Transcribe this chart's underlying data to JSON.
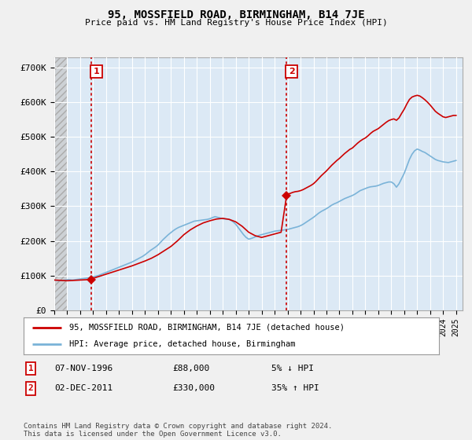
{
  "title": "95, MOSSFIELD ROAD, BIRMINGHAM, B14 7JE",
  "subtitle": "Price paid vs. HM Land Registry's House Price Index (HPI)",
  "ylabel_ticks": [
    "£0",
    "£100K",
    "£200K",
    "£300K",
    "£400K",
    "£500K",
    "£600K",
    "£700K"
  ],
  "ytick_values": [
    0,
    100000,
    200000,
    300000,
    400000,
    500000,
    600000,
    700000
  ],
  "ylim": [
    0,
    730000
  ],
  "xlim_start": 1994.0,
  "xlim_end": 2025.5,
  "background_color": "#f0f0f0",
  "plot_bg_color": "#dce9f5",
  "hatch_color": "#c8c8c8",
  "hpi_color": "#7ab3d8",
  "price_color": "#cc0000",
  "vline_color": "#cc0000",
  "sale1_year": 1996.85,
  "sale1_price": 88000,
  "sale2_year": 2011.92,
  "sale2_price": 330000,
  "legend_label1": "95, MOSSFIELD ROAD, BIRMINGHAM, B14 7JE (detached house)",
  "legend_label2": "HPI: Average price, detached house, Birmingham",
  "table_row1": [
    "1",
    "07-NOV-1996",
    "£88,000",
    "5% ↓ HPI"
  ],
  "table_row2": [
    "2",
    "02-DEC-2011",
    "£330,000",
    "35% ↑ HPI"
  ],
  "footnote": "Contains HM Land Registry data © Crown copyright and database right 2024.\nThis data is licensed under the Open Government Licence v3.0.",
  "hpi_x": [
    1994.0,
    1994.1,
    1994.2,
    1994.3,
    1994.4,
    1994.5,
    1994.6,
    1994.7,
    1994.8,
    1994.9,
    1995.0,
    1995.1,
    1995.2,
    1995.3,
    1995.4,
    1995.5,
    1995.6,
    1995.7,
    1995.8,
    1995.9,
    1996.0,
    1996.1,
    1996.2,
    1996.3,
    1996.4,
    1996.5,
    1996.6,
    1996.7,
    1996.8,
    1996.9,
    1997.0,
    1997.2,
    1997.4,
    1997.6,
    1997.8,
    1998.0,
    1998.2,
    1998.4,
    1998.6,
    1998.8,
    1999.0,
    1999.2,
    1999.4,
    1999.6,
    1999.8,
    2000.0,
    2000.2,
    2000.4,
    2000.6,
    2000.8,
    2001.0,
    2001.2,
    2001.4,
    2001.6,
    2001.8,
    2002.0,
    2002.2,
    2002.4,
    2002.6,
    2002.8,
    2003.0,
    2003.2,
    2003.4,
    2003.6,
    2003.8,
    2004.0,
    2004.2,
    2004.4,
    2004.6,
    2004.8,
    2005.0,
    2005.2,
    2005.4,
    2005.6,
    2005.8,
    2006.0,
    2006.2,
    2006.4,
    2006.6,
    2006.8,
    2007.0,
    2007.2,
    2007.4,
    2007.6,
    2007.8,
    2008.0,
    2008.2,
    2008.4,
    2008.6,
    2008.8,
    2009.0,
    2009.2,
    2009.4,
    2009.6,
    2009.8,
    2010.0,
    2010.2,
    2010.4,
    2010.6,
    2010.8,
    2011.0,
    2011.2,
    2011.4,
    2011.6,
    2011.8,
    2012.0,
    2012.2,
    2012.4,
    2012.6,
    2012.8,
    2013.0,
    2013.2,
    2013.4,
    2013.6,
    2013.8,
    2014.0,
    2014.2,
    2014.4,
    2014.6,
    2014.8,
    2015.0,
    2015.2,
    2015.4,
    2015.6,
    2015.8,
    2016.0,
    2016.2,
    2016.4,
    2016.6,
    2016.8,
    2017.0,
    2017.2,
    2017.4,
    2017.6,
    2017.8,
    2018.0,
    2018.2,
    2018.4,
    2018.6,
    2018.8,
    2019.0,
    2019.2,
    2019.4,
    2019.6,
    2019.8,
    2020.0,
    2020.2,
    2020.4,
    2020.6,
    2020.8,
    2021.0,
    2021.2,
    2021.4,
    2021.6,
    2021.8,
    2022.0,
    2022.2,
    2022.4,
    2022.6,
    2022.8,
    2023.0,
    2023.2,
    2023.4,
    2023.6,
    2023.8,
    2024.0,
    2024.2,
    2024.4,
    2024.6,
    2024.8,
    2025.0
  ],
  "hpi_y": [
    87000,
    86500,
    86000,
    85500,
    85000,
    85500,
    86000,
    86500,
    87000,
    87500,
    88000,
    88500,
    88000,
    87500,
    87000,
    87500,
    88000,
    88500,
    89000,
    89500,
    90000,
    90500,
    91000,
    91500,
    92000,
    92500,
    93000,
    93500,
    94000,
    94500,
    96000,
    98000,
    100000,
    103000,
    106000,
    109000,
    112000,
    115000,
    118000,
    121000,
    124000,
    127000,
    130000,
    133000,
    136000,
    139000,
    143000,
    147000,
    151000,
    155000,
    160000,
    166000,
    172000,
    177000,
    182000,
    188000,
    196000,
    204000,
    211000,
    218000,
    224000,
    230000,
    235000,
    239000,
    242000,
    245000,
    248000,
    251000,
    254000,
    257000,
    258000,
    259000,
    260000,
    261000,
    262000,
    264000,
    267000,
    270000,
    268000,
    266000,
    264000,
    263000,
    263000,
    260000,
    255000,
    248000,
    238000,
    228000,
    218000,
    210000,
    205000,
    207000,
    210000,
    213000,
    216000,
    218000,
    220000,
    222000,
    224000,
    226000,
    228000,
    229000,
    230000,
    231000,
    232000,
    233000,
    235000,
    237000,
    239000,
    241000,
    244000,
    248000,
    253000,
    258000,
    263000,
    268000,
    274000,
    280000,
    285000,
    289000,
    293000,
    298000,
    303000,
    307000,
    310000,
    314000,
    318000,
    322000,
    325000,
    328000,
    331000,
    335000,
    340000,
    345000,
    348000,
    351000,
    354000,
    356000,
    357000,
    358000,
    360000,
    363000,
    366000,
    368000,
    370000,
    370000,
    365000,
    355000,
    365000,
    380000,
    395000,
    415000,
    435000,
    450000,
    460000,
    465000,
    462000,
    458000,
    455000,
    450000,
    445000,
    440000,
    435000,
    432000,
    430000,
    428000,
    427000,
    426000,
    428000,
    430000,
    432000
  ],
  "price_x": [
    1994.0,
    1994.5,
    1995.0,
    1995.5,
    1996.0,
    1996.5,
    1996.85,
    1997.0,
    1997.5,
    1998.0,
    1998.5,
    1999.0,
    1999.5,
    2000.0,
    2000.5,
    2001.0,
    2001.5,
    2002.0,
    2002.5,
    2003.0,
    2003.5,
    2004.0,
    2004.5,
    2005.0,
    2005.5,
    2006.0,
    2006.5,
    2007.0,
    2007.5,
    2008.0,
    2008.5,
    2009.0,
    2009.5,
    2010.0,
    2010.5,
    2011.0,
    2011.5,
    2011.92,
    2012.0,
    2012.2,
    2012.4,
    2012.6,
    2012.8,
    2013.0,
    2013.2,
    2013.4,
    2013.6,
    2013.8,
    2014.0,
    2014.2,
    2014.4,
    2014.6,
    2014.8,
    2015.0,
    2015.2,
    2015.4,
    2015.6,
    2015.8,
    2016.0,
    2016.2,
    2016.4,
    2016.6,
    2016.8,
    2017.0,
    2017.2,
    2017.4,
    2017.6,
    2017.8,
    2018.0,
    2018.2,
    2018.4,
    2018.6,
    2018.8,
    2019.0,
    2019.2,
    2019.4,
    2019.6,
    2019.8,
    2020.0,
    2020.2,
    2020.4,
    2020.6,
    2020.8,
    2021.0,
    2021.2,
    2021.4,
    2021.6,
    2021.8,
    2022.0,
    2022.2,
    2022.4,
    2022.6,
    2022.8,
    2023.0,
    2023.2,
    2023.4,
    2023.6,
    2023.8,
    2024.0,
    2024.2,
    2024.4,
    2024.6,
    2024.8,
    2025.0
  ],
  "price_y": [
    87000,
    86000,
    85000,
    86000,
    87000,
    88000,
    88000,
    92000,
    98000,
    104000,
    110000,
    116000,
    122000,
    128000,
    135000,
    142000,
    150000,
    160000,
    172000,
    184000,
    200000,
    218000,
    232000,
    243000,
    252000,
    258000,
    263000,
    265000,
    262000,
    255000,
    242000,
    225000,
    215000,
    210000,
    215000,
    220000,
    225000,
    330000,
    335000,
    337000,
    340000,
    342000,
    343000,
    345000,
    348000,
    352000,
    356000,
    360000,
    365000,
    372000,
    380000,
    388000,
    395000,
    402000,
    410000,
    418000,
    425000,
    432000,
    438000,
    445000,
    452000,
    458000,
    464000,
    468000,
    475000,
    482000,
    488000,
    493000,
    497000,
    503000,
    510000,
    516000,
    520000,
    524000,
    530000,
    536000,
    542000,
    547000,
    550000,
    552000,
    548000,
    555000,
    568000,
    580000,
    595000,
    608000,
    615000,
    618000,
    620000,
    618000,
    613000,
    607000,
    600000,
    592000,
    583000,
    574000,
    568000,
    563000,
    558000,
    556000,
    558000,
    560000,
    562000,
    562000
  ]
}
